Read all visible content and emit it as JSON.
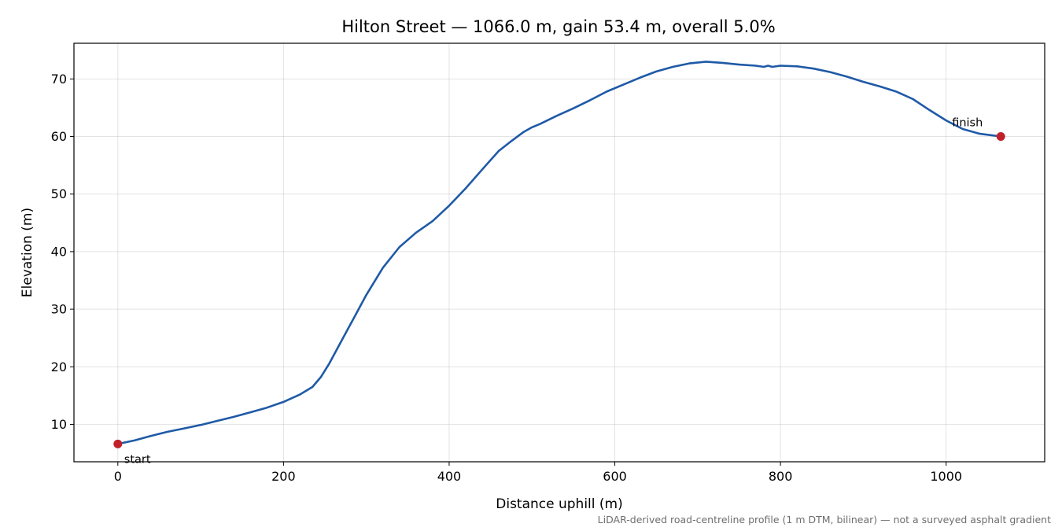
{
  "chart_data": {
    "type": "line",
    "title": "Hilton Street — 1066.0 m, gain 53.4 m, overall 5.0%",
    "xlabel": "Distance uphill (m)",
    "ylabel": "Elevation (m)",
    "xlim": [
      -53,
      1119
    ],
    "ylim": [
      3.5,
      76.2
    ],
    "x_ticks": [
      0,
      200,
      400,
      600,
      800,
      1000
    ],
    "y_ticks": [
      10,
      20,
      30,
      40,
      50,
      60,
      70
    ],
    "grid": true,
    "line_color": "#1f5aa6",
    "marker_color": "#c0202a",
    "series": [
      {
        "x": [
          0,
          20,
          40,
          60,
          80,
          100,
          120,
          140,
          160,
          180,
          200,
          220,
          235,
          245,
          255,
          270,
          285,
          300,
          320,
          340,
          360,
          380,
          400,
          420,
          440,
          460,
          475,
          490,
          500,
          510,
          530,
          550,
          570,
          590,
          610,
          630,
          650,
          670,
          690,
          710,
          730,
          750,
          770,
          780,
          785,
          790,
          800,
          820,
          840,
          860,
          880,
          900,
          920,
          940,
          960,
          980,
          1000,
          1020,
          1040,
          1066
        ],
        "y": [
          6.6,
          7.2,
          8.0,
          8.7,
          9.3,
          9.9,
          10.6,
          11.3,
          12.1,
          12.9,
          13.9,
          15.2,
          16.5,
          18.2,
          20.5,
          24.5,
          28.5,
          32.5,
          37.2,
          40.8,
          43.3,
          45.3,
          48.0,
          51.0,
          54.3,
          57.5,
          59.2,
          60.8,
          61.6,
          62.2,
          63.6,
          64.9,
          66.3,
          67.8,
          69.0,
          70.2,
          71.3,
          72.1,
          72.7,
          73.0,
          72.8,
          72.5,
          72.3,
          72.1,
          72.3,
          72.1,
          72.3,
          72.2,
          71.8,
          71.2,
          70.4,
          69.5,
          68.7,
          67.8,
          66.5,
          64.6,
          62.8,
          61.3,
          60.5,
          60.0
        ]
      }
    ],
    "annotations": [
      {
        "text": "start",
        "x": 0,
        "y": 6.6
      },
      {
        "text": "finish",
        "x": 1066,
        "y": 60.0
      }
    ],
    "caption": "LiDAR-derived road-centreline profile (1 m DTM, bilinear) — not a surveyed asphalt gradient"
  }
}
